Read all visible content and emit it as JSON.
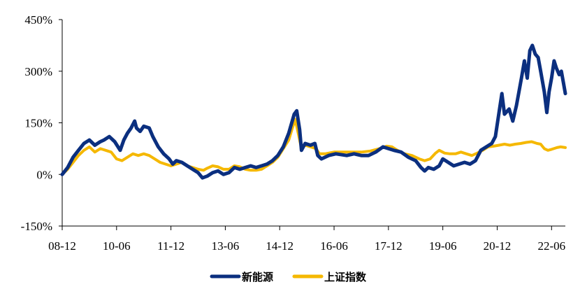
{
  "chart_data": {
    "type": "line",
    "title": "",
    "xlabel": "",
    "ylabel": "",
    "y_unit": "%",
    "ylim": [
      -150,
      450
    ],
    "y_ticks": [
      {
        "value": 450,
        "label": "450%"
      },
      {
        "value": 300,
        "label": "300%"
      },
      {
        "value": 150,
        "label": "150%"
      },
      {
        "value": 0,
        "label": "0%"
      },
      {
        "value": -150,
        "label": "-150%"
      }
    ],
    "xlim": [
      2008.95,
      2022.83
    ],
    "x_ticks": [
      {
        "t": 2008.95,
        "label": "08-12"
      },
      {
        "t": 2010.45,
        "label": "10-06"
      },
      {
        "t": 2011.95,
        "label": "11-12"
      },
      {
        "t": 2013.45,
        "label": "13-06"
      },
      {
        "t": 2014.95,
        "label": "14-12"
      },
      {
        "t": 2016.45,
        "label": "16-06"
      },
      {
        "t": 2017.95,
        "label": "17-12"
      },
      {
        "t": 2019.45,
        "label": "19-06"
      },
      {
        "t": 2020.95,
        "label": "20-12"
      },
      {
        "t": 2022.45,
        "label": "22-06"
      }
    ],
    "grid": false,
    "legend_position": "bottom",
    "series": [
      {
        "name": "新能源",
        "color": "#0b2f7f",
        "points": [
          [
            2008.95,
            0
          ],
          [
            2009.1,
            20
          ],
          [
            2009.25,
            50
          ],
          [
            2009.4,
            70
          ],
          [
            2009.55,
            90
          ],
          [
            2009.7,
            100
          ],
          [
            2009.85,
            85
          ],
          [
            2010.0,
            95
          ],
          [
            2010.1,
            100
          ],
          [
            2010.25,
            110
          ],
          [
            2010.4,
            95
          ],
          [
            2010.55,
            70
          ],
          [
            2010.65,
            100
          ],
          [
            2010.75,
            120
          ],
          [
            2010.85,
            135
          ],
          [
            2010.95,
            155
          ],
          [
            2011.0,
            135
          ],
          [
            2011.1,
            125
          ],
          [
            2011.2,
            140
          ],
          [
            2011.35,
            135
          ],
          [
            2011.45,
            110
          ],
          [
            2011.6,
            80
          ],
          [
            2011.75,
            60
          ],
          [
            2011.9,
            45
          ],
          [
            2012.0,
            30
          ],
          [
            2012.1,
            40
          ],
          [
            2012.25,
            35
          ],
          [
            2012.4,
            25
          ],
          [
            2012.55,
            15
          ],
          [
            2012.7,
            5
          ],
          [
            2012.82,
            -10
          ],
          [
            2012.95,
            -5
          ],
          [
            2013.1,
            5
          ],
          [
            2013.25,
            10
          ],
          [
            2013.4,
            0
          ],
          [
            2013.55,
            5
          ],
          [
            2013.7,
            20
          ],
          [
            2013.85,
            15
          ],
          [
            2014.0,
            20
          ],
          [
            2014.15,
            25
          ],
          [
            2014.3,
            20
          ],
          [
            2014.45,
            25
          ],
          [
            2014.6,
            30
          ],
          [
            2014.75,
            40
          ],
          [
            2014.9,
            55
          ],
          [
            2015.05,
            80
          ],
          [
            2015.2,
            120
          ],
          [
            2015.35,
            175
          ],
          [
            2015.42,
            185
          ],
          [
            2015.5,
            130
          ],
          [
            2015.55,
            70
          ],
          [
            2015.65,
            90
          ],
          [
            2015.8,
            85
          ],
          [
            2015.92,
            90
          ],
          [
            2016.0,
            55
          ],
          [
            2016.1,
            45
          ],
          [
            2016.3,
            55
          ],
          [
            2016.5,
            60
          ],
          [
            2016.8,
            55
          ],
          [
            2017.0,
            60
          ],
          [
            2017.2,
            55
          ],
          [
            2017.4,
            55
          ],
          [
            2017.6,
            65
          ],
          [
            2017.8,
            80
          ],
          [
            2017.95,
            75
          ],
          [
            2018.1,
            70
          ],
          [
            2018.3,
            65
          ],
          [
            2018.5,
            50
          ],
          [
            2018.7,
            40
          ],
          [
            2018.85,
            20
          ],
          [
            2018.95,
            10
          ],
          [
            2019.05,
            20
          ],
          [
            2019.2,
            15
          ],
          [
            2019.35,
            25
          ],
          [
            2019.45,
            45
          ],
          [
            2019.6,
            35
          ],
          [
            2019.75,
            25
          ],
          [
            2019.9,
            30
          ],
          [
            2020.05,
            35
          ],
          [
            2020.2,
            30
          ],
          [
            2020.35,
            40
          ],
          [
            2020.5,
            70
          ],
          [
            2020.65,
            80
          ],
          [
            2020.8,
            90
          ],
          [
            2020.9,
            110
          ],
          [
            2021.0,
            180
          ],
          [
            2021.08,
            235
          ],
          [
            2021.15,
            175
          ],
          [
            2021.28,
            190
          ],
          [
            2021.38,
            155
          ],
          [
            2021.48,
            200
          ],
          [
            2021.55,
            240
          ],
          [
            2021.62,
            280
          ],
          [
            2021.7,
            330
          ],
          [
            2021.78,
            280
          ],
          [
            2021.85,
            360
          ],
          [
            2021.92,
            375
          ],
          [
            2022.0,
            350
          ],
          [
            2022.08,
            340
          ],
          [
            2022.15,
            300
          ],
          [
            2022.25,
            240
          ],
          [
            2022.32,
            180
          ],
          [
            2022.38,
            240
          ],
          [
            2022.45,
            280
          ],
          [
            2022.52,
            330
          ],
          [
            2022.58,
            310
          ],
          [
            2022.66,
            290
          ],
          [
            2022.72,
            300
          ],
          [
            2022.78,
            265
          ],
          [
            2022.83,
            235
          ]
        ]
      },
      {
        "name": "上证指数",
        "color": "#f5b800",
        "points": [
          [
            2008.95,
            0
          ],
          [
            2009.1,
            15
          ],
          [
            2009.25,
            35
          ],
          [
            2009.4,
            55
          ],
          [
            2009.55,
            70
          ],
          [
            2009.7,
            80
          ],
          [
            2009.85,
            65
          ],
          [
            2010.0,
            75
          ],
          [
            2010.15,
            70
          ],
          [
            2010.3,
            65
          ],
          [
            2010.45,
            45
          ],
          [
            2010.6,
            40
          ],
          [
            2010.75,
            50
          ],
          [
            2010.9,
            60
          ],
          [
            2011.05,
            55
          ],
          [
            2011.2,
            60
          ],
          [
            2011.35,
            55
          ],
          [
            2011.5,
            45
          ],
          [
            2011.65,
            35
          ],
          [
            2011.8,
            30
          ],
          [
            2011.95,
            25
          ],
          [
            2012.1,
            30
          ],
          [
            2012.25,
            35
          ],
          [
            2012.4,
            25
          ],
          [
            2012.55,
            20
          ],
          [
            2012.7,
            15
          ],
          [
            2012.85,
            12
          ],
          [
            2012.95,
            18
          ],
          [
            2013.1,
            25
          ],
          [
            2013.25,
            22
          ],
          [
            2013.4,
            15
          ],
          [
            2013.55,
            15
          ],
          [
            2013.7,
            25
          ],
          [
            2013.85,
            22
          ],
          [
            2014.0,
            15
          ],
          [
            2014.15,
            12
          ],
          [
            2014.3,
            12
          ],
          [
            2014.45,
            15
          ],
          [
            2014.6,
            25
          ],
          [
            2014.75,
            35
          ],
          [
            2014.9,
            50
          ],
          [
            2015.05,
            75
          ],
          [
            2015.2,
            100
          ],
          [
            2015.3,
            135
          ],
          [
            2015.38,
            160
          ],
          [
            2015.45,
            125
          ],
          [
            2015.55,
            75
          ],
          [
            2015.65,
            85
          ],
          [
            2015.8,
            80
          ],
          [
            2015.95,
            75
          ],
          [
            2016.05,
            60
          ],
          [
            2016.2,
            60
          ],
          [
            2016.45,
            65
          ],
          [
            2016.7,
            65
          ],
          [
            2016.95,
            65
          ],
          [
            2017.2,
            65
          ],
          [
            2017.45,
            68
          ],
          [
            2017.7,
            75
          ],
          [
            2017.9,
            82
          ],
          [
            2018.05,
            80
          ],
          [
            2018.2,
            70
          ],
          [
            2018.4,
            60
          ],
          [
            2018.6,
            55
          ],
          [
            2018.8,
            45
          ],
          [
            2018.95,
            40
          ],
          [
            2019.1,
            45
          ],
          [
            2019.25,
            62
          ],
          [
            2019.35,
            70
          ],
          [
            2019.5,
            62
          ],
          [
            2019.65,
            60
          ],
          [
            2019.8,
            60
          ],
          [
            2019.95,
            65
          ],
          [
            2020.1,
            60
          ],
          [
            2020.25,
            55
          ],
          [
            2020.4,
            62
          ],
          [
            2020.55,
            70
          ],
          [
            2020.7,
            80
          ],
          [
            2020.85,
            82
          ],
          [
            2021.0,
            85
          ],
          [
            2021.15,
            88
          ],
          [
            2021.3,
            85
          ],
          [
            2021.45,
            88
          ],
          [
            2021.6,
            90
          ],
          [
            2021.75,
            93
          ],
          [
            2021.9,
            95
          ],
          [
            2022.05,
            90
          ],
          [
            2022.15,
            88
          ],
          [
            2022.25,
            75
          ],
          [
            2022.35,
            70
          ],
          [
            2022.45,
            73
          ],
          [
            2022.6,
            78
          ],
          [
            2022.7,
            80
          ],
          [
            2022.83,
            78
          ]
        ]
      }
    ]
  },
  "legend": {
    "items": [
      {
        "label": "新能源",
        "color": "#0b2f7f"
      },
      {
        "label": "上证指数",
        "color": "#f5b800"
      }
    ]
  }
}
